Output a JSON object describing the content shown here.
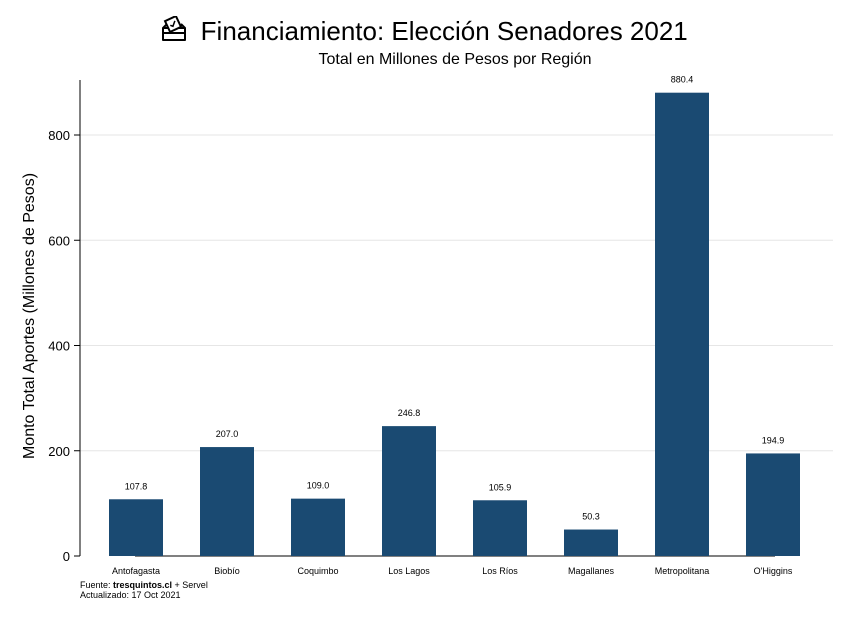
{
  "chart_data": {
    "type": "bar",
    "title": "Financiamiento: Elección Senadores 2021",
    "subtitle": "Total en Millones de Pesos por Región",
    "xlabel": "",
    "ylabel": "Monto Total Aportes (Millones de Pesos)",
    "ylim": [
      0,
      900
    ],
    "yticks": [
      0,
      200,
      400,
      600,
      800
    ],
    "categories": [
      "Antofagasta",
      "Biobío",
      "Coquimbo",
      "Los Lagos",
      "Los Ríos",
      "Magallanes",
      "Metropolitana",
      "O'Higgins"
    ],
    "values": [
      107.8,
      207.0,
      109.0,
      246.8,
      105.9,
      50.3,
      880.4,
      194.9
    ],
    "value_labels": [
      "107.8",
      "207.0",
      "109.0",
      "246.8",
      "105.9",
      "50.3",
      "880.4",
      "194.9"
    ],
    "bar_color": "#1a4a72",
    "grid": true
  },
  "icons": {
    "title_icon": "ballot-box-icon"
  },
  "footer": {
    "source_prefix": "Fuente: ",
    "source_site": "tresquintos.cl",
    "source_suffix": " + Servel",
    "updated": "Actualizado: 17 Oct 2021"
  }
}
